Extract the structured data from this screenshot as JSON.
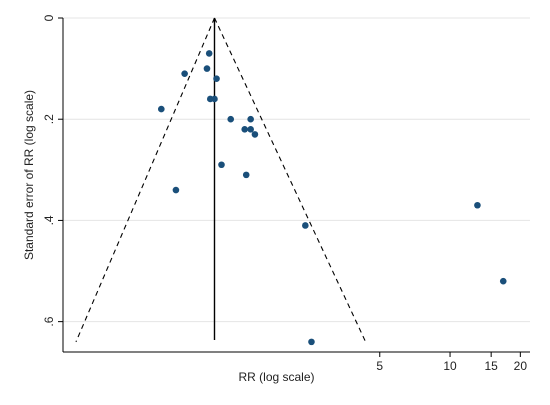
{
  "chart_data": {
    "type": "scatter",
    "title": "",
    "xlabel": "RR (log scale)",
    "ylabel": "Standard error of RR (log scale)",
    "x_scale": "log",
    "y_reversed": true,
    "xlim": [
      0.22,
      22
    ],
    "ylim": [
      0,
      0.66
    ],
    "x_ticks": [
      5,
      10,
      15,
      20
    ],
    "y_ticks": [
      0,
      0.2,
      0.4,
      0.6
    ],
    "x_tick_labels": [
      "5",
      "10",
      "15",
      "20"
    ],
    "y_tick_labels": [
      "0",
      ".2",
      ".4",
      ".6"
    ],
    "grid": "horizontal",
    "pooled_estimate": 0.98,
    "funnel_apex_se": 0,
    "funnel_base_se": 0.64,
    "funnel_left_x": 0.25,
    "funnel_right_x": 4.35,
    "points": [
      {
        "x": 0.93,
        "y": 0.07
      },
      {
        "x": 0.91,
        "y": 0.1
      },
      {
        "x": 0.73,
        "y": 0.11
      },
      {
        "x": 1.0,
        "y": 0.12
      },
      {
        "x": 0.94,
        "y": 0.16
      },
      {
        "x": 0.98,
        "y": 0.16
      },
      {
        "x": 0.58,
        "y": 0.18
      },
      {
        "x": 1.15,
        "y": 0.2
      },
      {
        "x": 1.4,
        "y": 0.2
      },
      {
        "x": 1.32,
        "y": 0.22
      },
      {
        "x": 1.4,
        "y": 0.22
      },
      {
        "x": 1.46,
        "y": 0.23
      },
      {
        "x": 1.05,
        "y": 0.29
      },
      {
        "x": 1.34,
        "y": 0.31
      },
      {
        "x": 0.67,
        "y": 0.34
      },
      {
        "x": 2.4,
        "y": 0.41
      },
      {
        "x": 2.55,
        "y": 0.64
      },
      {
        "x": 13.1,
        "y": 0.37
      },
      {
        "x": 16.9,
        "y": 0.52
      }
    ],
    "colors": {
      "point": "#1a4f7a",
      "line": "#000000",
      "grid": "#e4e4e4",
      "frame": "#000000"
    }
  }
}
